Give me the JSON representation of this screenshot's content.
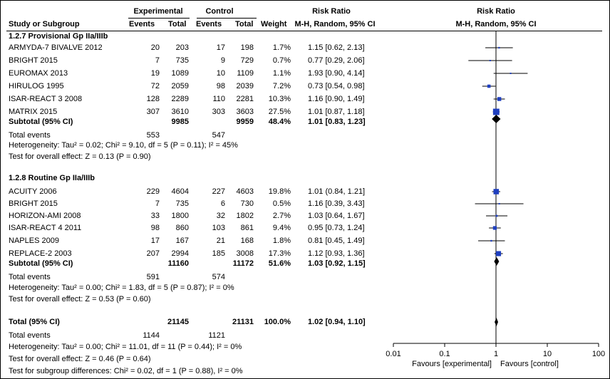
{
  "header": {
    "group_experimental": "Experimental",
    "group_control": "Control",
    "risk_ratio": "Risk Ratio",
    "risk_ratio_plot": "Risk Ratio",
    "col_study": "Study or Subgroup",
    "col_events": "Events",
    "col_total": "Total",
    "col_weight": "Weight",
    "col_method": "M-H, Random, 95% CI",
    "col_method_plot": "M-H, Random, 95% CI"
  },
  "subgroups": [
    {
      "title": "1.2.7 Provisional Gp IIa/IIIb",
      "studies": [
        {
          "name": "ARMYDA-7 BIVALVE 2012",
          "e_events": "20",
          "e_total": "203",
          "c_events": "17",
          "c_total": "198",
          "weight": "1.7%",
          "ci": "1.15 [0.62, 2.13]"
        },
        {
          "name": "BRIGHT 2015",
          "e_events": "7",
          "e_total": "735",
          "c_events": "9",
          "c_total": "729",
          "weight": "0.7%",
          "ci": "0.77 [0.29, 2.06]"
        },
        {
          "name": "EUROMAX 2013",
          "e_events": "19",
          "e_total": "1089",
          "c_events": "10",
          "c_total": "1109",
          "weight": "1.1%",
          "ci": "1.93 [0.90, 4.14]"
        },
        {
          "name": "HIRULOG 1995",
          "e_events": "72",
          "e_total": "2059",
          "c_events": "98",
          "c_total": "2039",
          "weight": "7.2%",
          "ci": "0.73 [0.54, 0.98]"
        },
        {
          "name": "ISAR-REACT 3 2008",
          "e_events": "128",
          "e_total": "2289",
          "c_events": "110",
          "c_total": "2281",
          "weight": "10.3%",
          "ci": "1.16 [0.90, 1.49]"
        },
        {
          "name": "MATRIX 2015",
          "e_events": "307",
          "e_total": "3610",
          "c_events": "303",
          "c_total": "3603",
          "weight": "27.5%",
          "ci": "1.01 [0.87, 1.18]"
        }
      ],
      "subtotal": {
        "label": "Subtotal (95% CI)",
        "e_total": "9985",
        "c_total": "9959",
        "weight": "48.4%",
        "ci": "1.01 [0.83, 1.23]"
      },
      "total_events": {
        "label": "Total events",
        "e": "553",
        "c": "547"
      },
      "heterogeneity": "Heterogeneity: Tau² = 0.02; Chi² = 9.10, df = 5 (P = 0.11); I² = 45%",
      "overall": "Test for overall effect: Z = 0.13 (P = 0.90)"
    },
    {
      "title": "1.2.8 Routine Gp IIa/IIIb",
      "studies": [
        {
          "name": "ACUITY 2006",
          "e_events": "229",
          "e_total": "4604",
          "c_events": "227",
          "c_total": "4603",
          "weight": "19.8%",
          "ci": "1.01 (0.84, 1.21]"
        },
        {
          "name": "BRIGHT 2015",
          "e_events": "7",
          "e_total": "735",
          "c_events": "6",
          "c_total": "730",
          "weight": "0.5%",
          "ci": "1.16 [0.39, 3.43]"
        },
        {
          "name": "HORIZON-AMI 2008",
          "e_events": "33",
          "e_total": "1800",
          "c_events": "32",
          "c_total": "1802",
          "weight": "2.7%",
          "ci": "1.03 [0.64, 1.67]"
        },
        {
          "name": "ISAR-REACT 4 2011",
          "e_events": "98",
          "e_total": "860",
          "c_events": "103",
          "c_total": "861",
          "weight": "9.4%",
          "ci": "0.95 [0.73, 1.24]"
        },
        {
          "name": "NAPLES 2009",
          "e_events": "17",
          "e_total": "167",
          "c_events": "21",
          "c_total": "168",
          "weight": "1.8%",
          "ci": "0.81 [0.45, 1.49]"
        },
        {
          "name": "REPLACE-2 2003",
          "e_events": "207",
          "e_total": "2994",
          "c_events": "185",
          "c_total": "3008",
          "weight": "17.3%",
          "ci": "1.12 [0.93, 1.36]"
        }
      ],
      "subtotal": {
        "label": "Subtotal (95% CI)",
        "e_total": "11160",
        "c_total": "11172",
        "weight": "51.6%",
        "ci": "1.03 [0.92, 1.15]"
      },
      "total_events": {
        "label": "Total events",
        "e": "591",
        "c": "574"
      },
      "heterogeneity": "Heterogeneity: Tau² = 0.00; Chi² = 1.83, df = 5 (P = 0.87); I² = 0%",
      "overall": "Test for overall effect: Z = 0.53 (P = 0.60)"
    }
  ],
  "total": {
    "label": "Total (95% CI)",
    "e_total": "21145",
    "c_total": "21131",
    "weight": "100.0%",
    "ci": "1.02 [0.94, 1.10]"
  },
  "total_events": {
    "label": "Total events",
    "e": "1144",
    "c": "1121"
  },
  "heterogeneity": "Heterogeneity: Tau² = 0.00; Chi² = 11.01, df = 11 (P = 0.44); I² = 0%",
  "overall": "Test for overall effect: Z = 0.46 (P = 0.64)",
  "subgroup_diff": "Test for subgroup differences: Chi² = 0.02, df = 1 (P = 0.88), I² = 0%",
  "colors": {
    "marker": "#1f3fbf",
    "line": "#000000"
  },
  "chart_data": {
    "type": "forest",
    "title": "Risk Ratio",
    "xscale": "log",
    "xlim": [
      0.01,
      100
    ],
    "ticks": [
      0.01,
      0.1,
      1,
      10,
      100
    ],
    "tick_labels": [
      "0.01",
      "0.1",
      "1",
      "10",
      "100"
    ],
    "xlabel_left": "Favours [experimental]",
    "xlabel_right": "Favours [control]",
    "studies": [
      {
        "name": "ARMYDA-7 BIVALVE 2012",
        "rr": 1.15,
        "lo": 0.62,
        "hi": 2.13,
        "weight": 1.7
      },
      {
        "name": "BRIGHT 2015",
        "rr": 0.77,
        "lo": 0.29,
        "hi": 2.06,
        "weight": 0.7
      },
      {
        "name": "EUROMAX 2013",
        "rr": 1.93,
        "lo": 0.9,
        "hi": 4.14,
        "weight": 1.1
      },
      {
        "name": "HIRULOG 1995",
        "rr": 0.73,
        "lo": 0.54,
        "hi": 0.98,
        "weight": 7.2
      },
      {
        "name": "ISAR-REACT 3 2008",
        "rr": 1.16,
        "lo": 0.9,
        "hi": 1.49,
        "weight": 10.3
      },
      {
        "name": "MATRIX 2015",
        "rr": 1.01,
        "lo": 0.87,
        "hi": 1.18,
        "weight": 27.5
      },
      {
        "name": "ACUITY 2006",
        "rr": 1.01,
        "lo": 0.84,
        "hi": 1.21,
        "weight": 19.8
      },
      {
        "name": "BRIGHT 2015",
        "rr": 1.16,
        "lo": 0.39,
        "hi": 3.43,
        "weight": 0.5
      },
      {
        "name": "HORIZON-AMI 2008",
        "rr": 1.03,
        "lo": 0.64,
        "hi": 1.67,
        "weight": 2.7
      },
      {
        "name": "ISAR-REACT 4 2011",
        "rr": 0.95,
        "lo": 0.73,
        "hi": 1.24,
        "weight": 9.4
      },
      {
        "name": "NAPLES 2009",
        "rr": 0.81,
        "lo": 0.45,
        "hi": 1.49,
        "weight": 1.8
      },
      {
        "name": "REPLACE-2 2003",
        "rr": 1.12,
        "lo": 0.93,
        "hi": 1.36,
        "weight": 17.3
      }
    ],
    "diamonds": [
      {
        "name": "Subtotal 1.2.7",
        "rr": 1.01,
        "lo": 0.83,
        "hi": 1.23
      },
      {
        "name": "Subtotal 1.2.8",
        "rr": 1.03,
        "lo": 0.92,
        "hi": 1.15
      },
      {
        "name": "Total",
        "rr": 1.02,
        "lo": 0.94,
        "hi": 1.1
      }
    ]
  }
}
